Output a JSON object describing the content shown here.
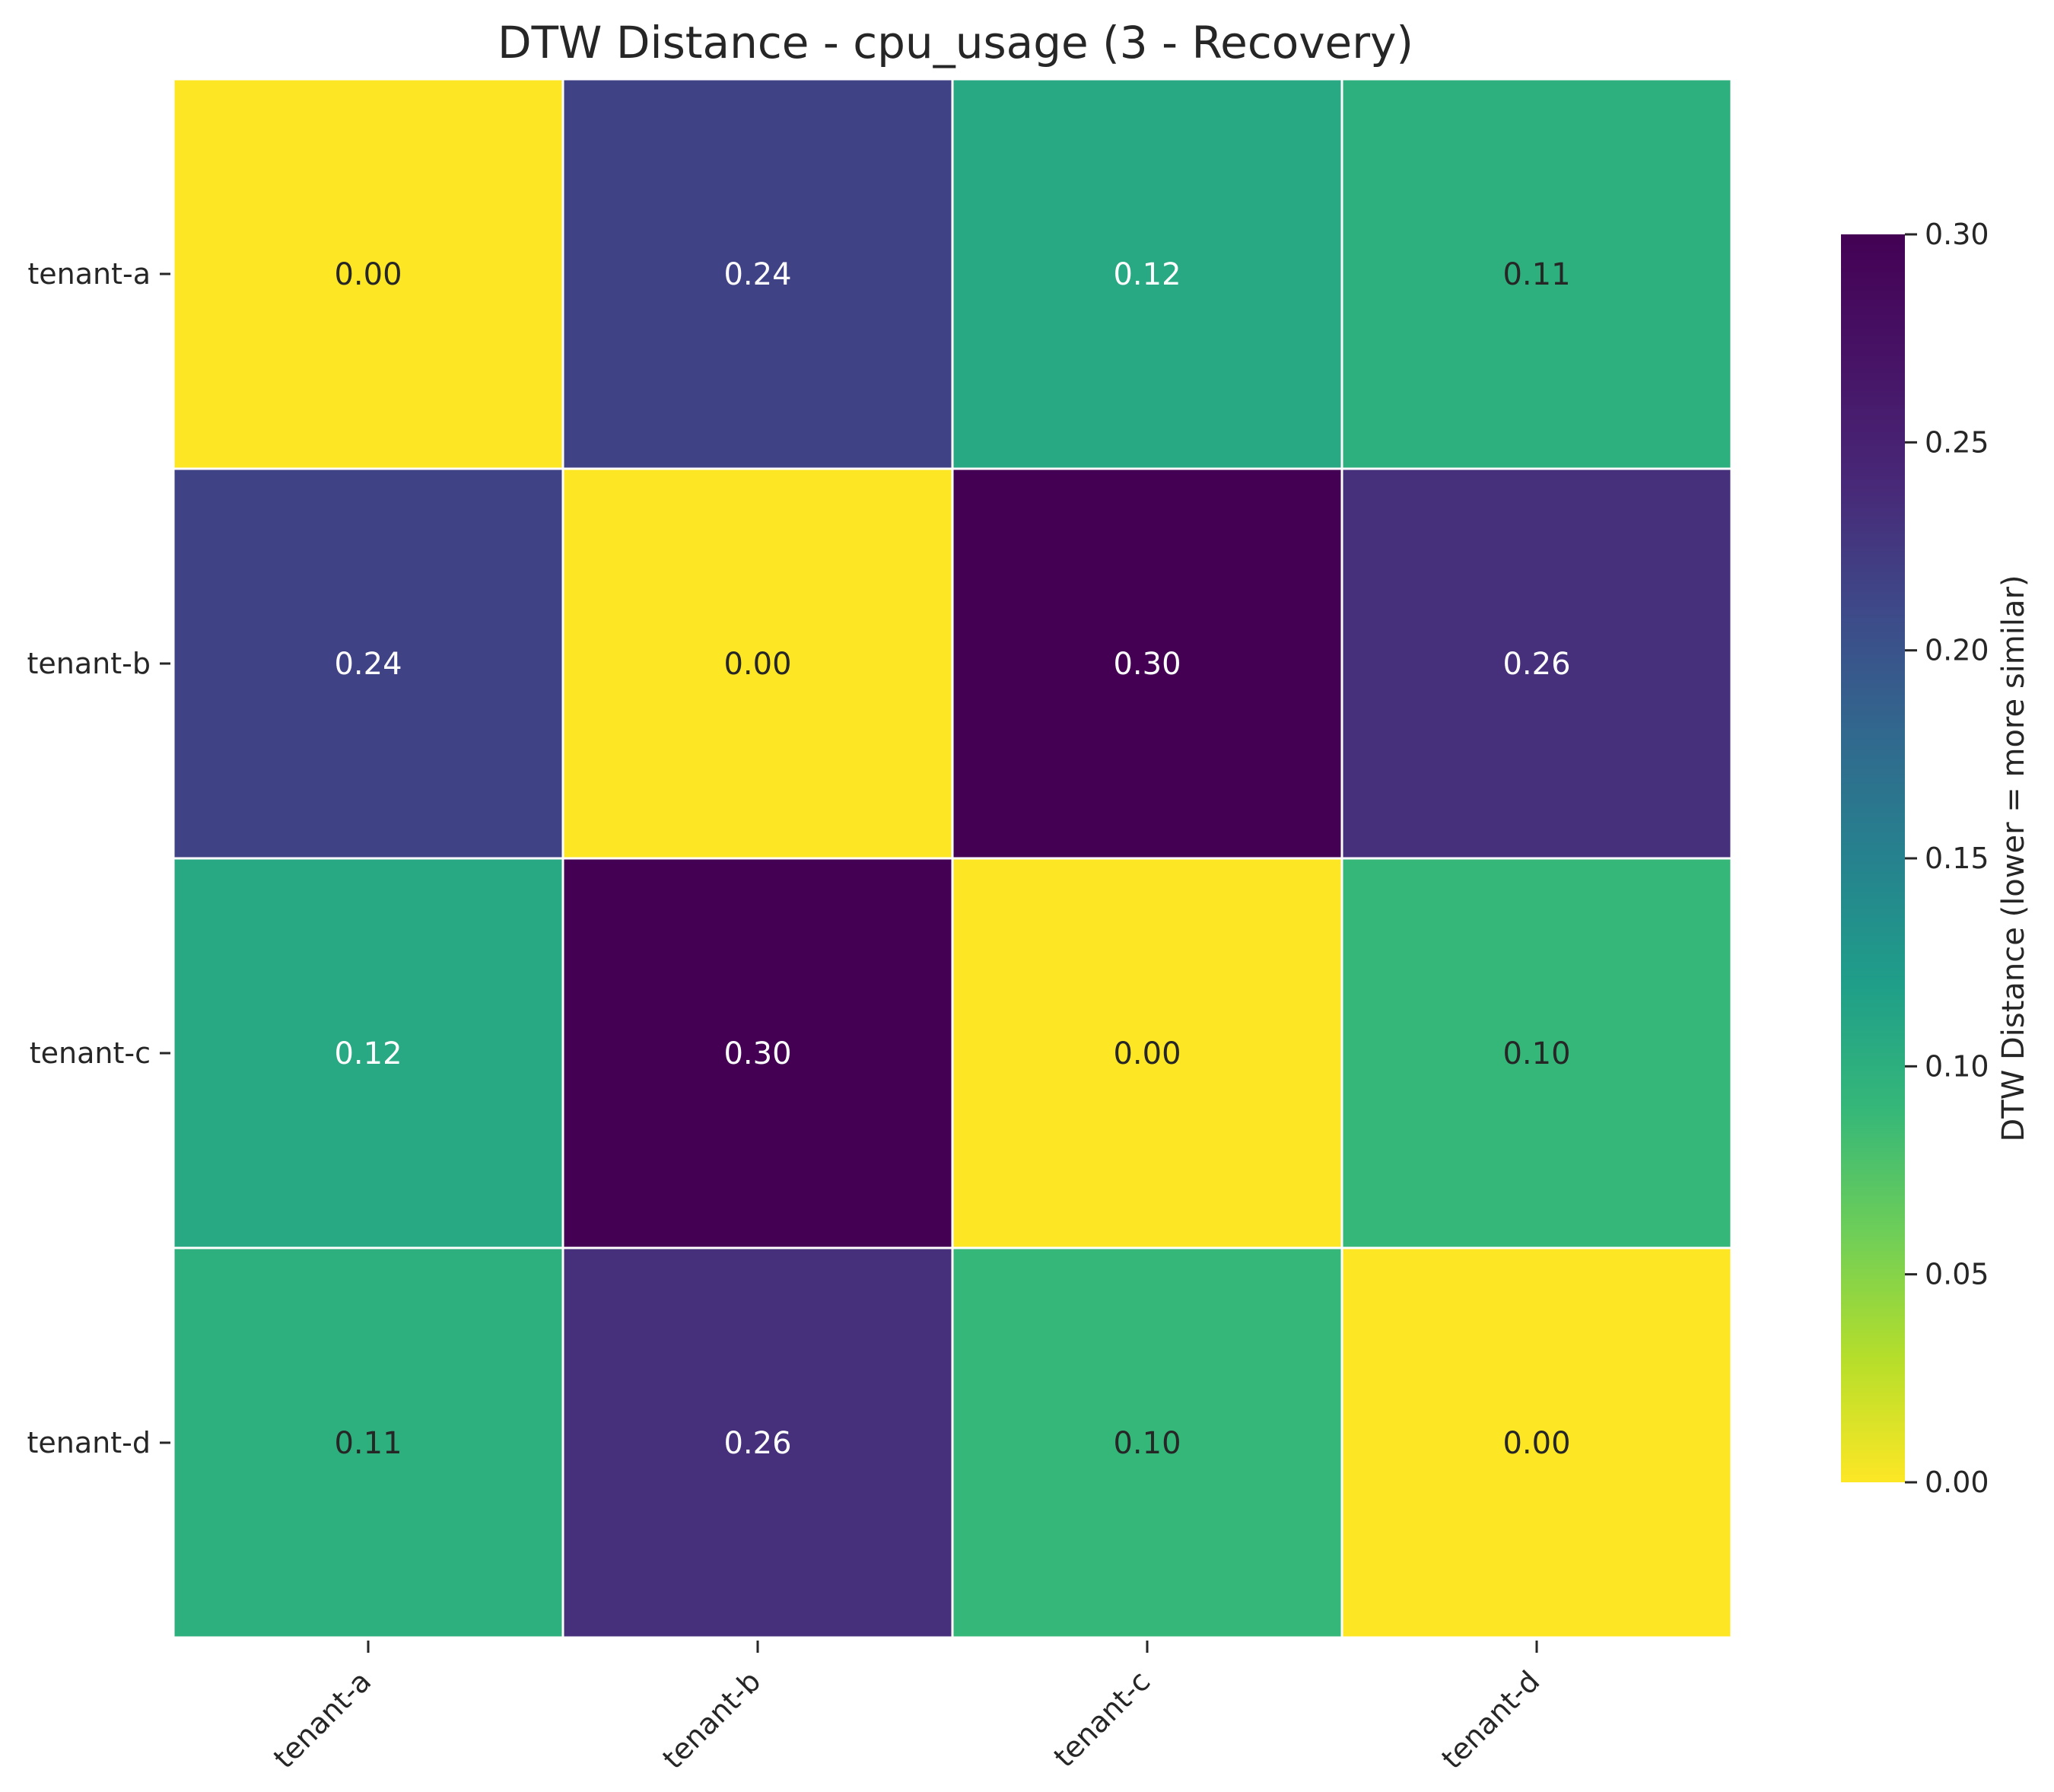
{
  "chart_data": {
    "type": "heatmap",
    "title": "DTW Distance - cpu_usage (3 - Recovery)",
    "rows": [
      "tenant-a",
      "tenant-b",
      "tenant-c",
      "tenant-d"
    ],
    "columns": [
      "tenant-a",
      "tenant-b",
      "tenant-c",
      "tenant-d"
    ],
    "values": [
      [
        0.0,
        0.24,
        0.12,
        0.11
      ],
      [
        0.24,
        0.0,
        0.3,
        0.26
      ],
      [
        0.12,
        0.3,
        0.0,
        0.1
      ],
      [
        0.11,
        0.26,
        0.1,
        0.0
      ]
    ],
    "value_labels": [
      [
        "0.00",
        "0.24",
        "0.12",
        "0.11"
      ],
      [
        "0.24",
        "0.00",
        "0.30",
        "0.26"
      ],
      [
        "0.12",
        "0.30",
        "0.00",
        "0.10"
      ],
      [
        "0.11",
        "0.26",
        "0.10",
        "0.00"
      ]
    ],
    "colormap": "viridis_r",
    "colorbar": {
      "label": "DTW Distance (lower = more similar)",
      "vmin": 0.0,
      "vmax": 0.3,
      "ticks": [
        "0.00",
        "0.05",
        "0.10",
        "0.15",
        "0.20",
        "0.25",
        "0.30"
      ]
    },
    "colors": {
      "grid_line": "#ffffff",
      "text_dark": "#262626",
      "text_light": "#ffffff"
    }
  }
}
